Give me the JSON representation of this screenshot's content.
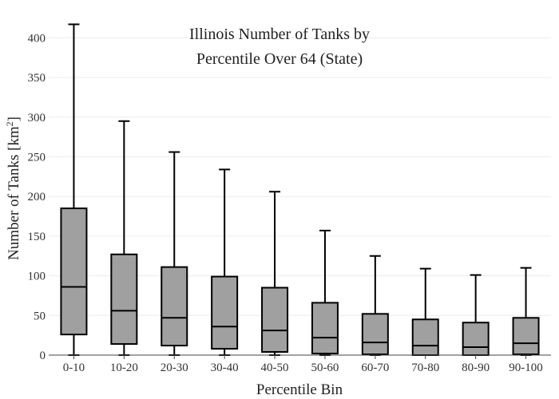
{
  "chart_data": {
    "type": "box",
    "title_line1": "Illinois Number of Tanks by",
    "title_line2": "Percentile Over 64 (State)",
    "xlabel": "Percentile Bin",
    "ylabel_main": "Number of Tanks  [km",
    "ylabel_sup": "2",
    "ylabel_end": "]",
    "ylim": [
      0,
      420
    ],
    "yticks": [
      0,
      50,
      100,
      150,
      200,
      250,
      300,
      350,
      400
    ],
    "grid": true,
    "box_color": "#a0a0a0",
    "categories": [
      "0-10",
      "10-20",
      "20-30",
      "30-40",
      "40-50",
      "50-60",
      "60-70",
      "70-80",
      "80-90",
      "90-100"
    ],
    "boxes": [
      {
        "min": 0,
        "q1": 26,
        "median": 86,
        "q3": 185,
        "max": 417
      },
      {
        "min": 0,
        "q1": 14,
        "median": 56,
        "q3": 127,
        "max": 295
      },
      {
        "min": 0,
        "q1": 12,
        "median": 47,
        "q3": 111,
        "max": 256
      },
      {
        "min": 0,
        "q1": 8,
        "median": 36,
        "q3": 99,
        "max": 234
      },
      {
        "min": 0,
        "q1": 4,
        "median": 31,
        "q3": 85,
        "max": 206
      },
      {
        "min": 0,
        "q1": 2,
        "median": 22,
        "q3": 66,
        "max": 157
      },
      {
        "min": 0,
        "q1": 1,
        "median": 16,
        "q3": 52,
        "max": 125
      },
      {
        "min": 0,
        "q1": 0,
        "median": 12,
        "q3": 45,
        "max": 109
      },
      {
        "min": 0,
        "q1": 0,
        "median": 10,
        "q3": 41,
        "max": 101
      },
      {
        "min": 0,
        "q1": 1,
        "median": 15,
        "q3": 47,
        "max": 110
      }
    ]
  }
}
